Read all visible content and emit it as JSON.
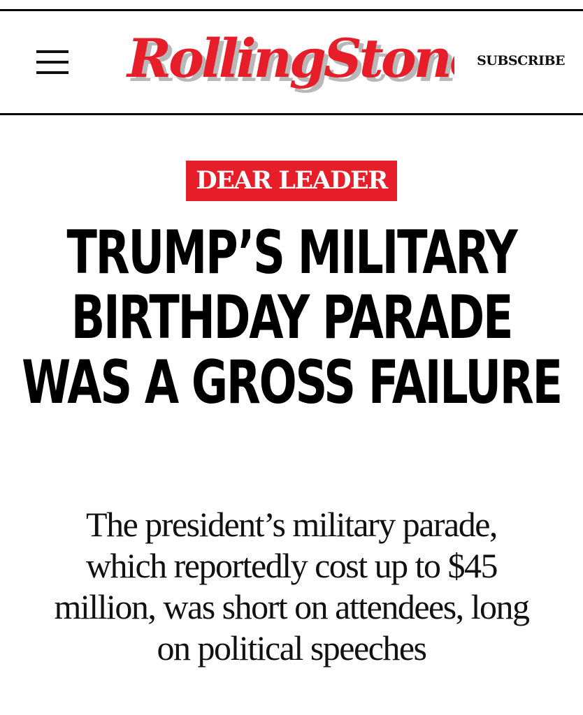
{
  "header": {
    "menu_icon": "hamburger-menu-icon",
    "logo_text": "RollingStone",
    "subscribe_label": "SUBSCRIBE"
  },
  "article": {
    "kicker": "DEAR LEADER",
    "headline": "TRUMP’S MILITARY BIRTHDAY PARADE WAS A GROSS FAILURE",
    "subheadline": "The president’s military parade, which reportedly cost up to $45 million, was short on attendees, long on political speeches"
  },
  "colors": {
    "brand_red": "#e61e2a",
    "text": "#000000",
    "background": "#ffffff"
  }
}
